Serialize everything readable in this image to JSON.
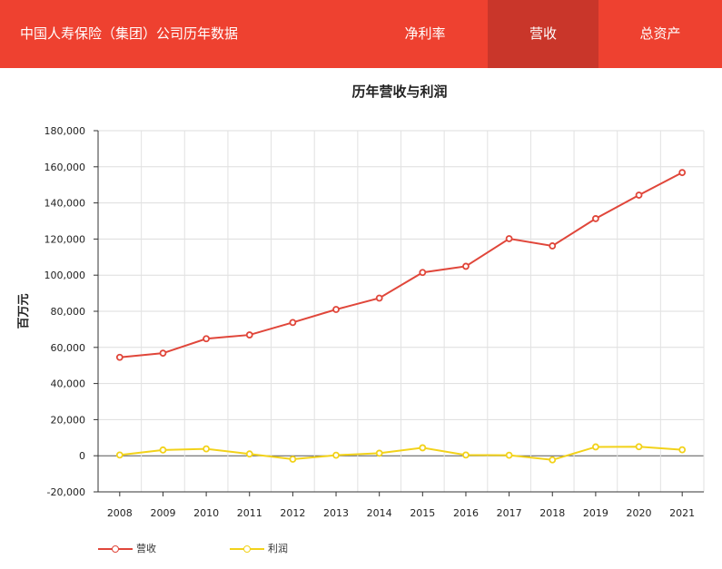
{
  "header": {
    "title": "中国人寿保险（集团）公司历年数据",
    "tabs": [
      {
        "label": "净利率",
        "active": false
      },
      {
        "label": "营收",
        "active": true
      },
      {
        "label": "总资产",
        "active": false
      }
    ]
  },
  "colors": {
    "header_bg": "#ee4130",
    "tab_active_bg": "#c9362a",
    "revenue_line": "#e0463a",
    "profit_line": "#f2d21a"
  },
  "chart_data": {
    "type": "line",
    "title": "历年营收与利润",
    "ylabel": "百万元",
    "xlabel": "",
    "categories": [
      "2008",
      "2009",
      "2010",
      "2011",
      "2012",
      "2013",
      "2014",
      "2015",
      "2016",
      "2017",
      "2018",
      "2019",
      "2020",
      "2021"
    ],
    "ylim": [
      -20000,
      180000
    ],
    "yticks": [
      "-20,000",
      "0",
      "20,000",
      "40,000",
      "60,000",
      "80,000",
      "100,000",
      "120,000",
      "140,000",
      "160,000",
      "180,000"
    ],
    "grid": true,
    "legend_position": "bottom-left",
    "series": [
      {
        "name": "营收",
        "color": "#e0463a",
        "values": [
          54500,
          56800,
          64800,
          66900,
          73800,
          81000,
          87300,
          101500,
          104900,
          120200,
          116200,
          131300,
          144300,
          156800
        ]
      },
      {
        "name": "利润",
        "color": "#f2d21a",
        "values": [
          400,
          3200,
          3800,
          1000,
          -1900,
          300,
          1400,
          4400,
          400,
          300,
          -2300,
          4900,
          5000,
          3300
        ]
      }
    ]
  }
}
